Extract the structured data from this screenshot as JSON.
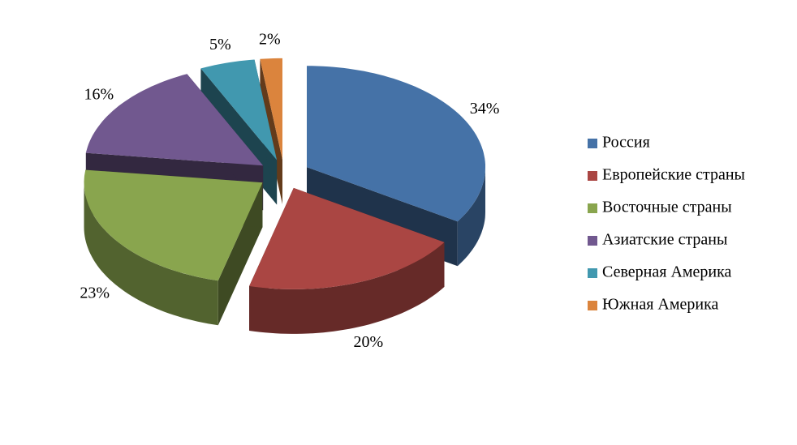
{
  "chart_data": {
    "type": "pie3d",
    "categories": [
      "Россия",
      "Европейские страны",
      "Восточные страны",
      "Азиатские страны",
      "Северная Америка",
      "Южная Америка"
    ],
    "values": [
      34,
      20,
      23,
      16,
      5,
      2
    ],
    "value_labels": [
      "34%",
      "20%",
      "23%",
      "16%",
      "5%",
      "2%"
    ],
    "colors": [
      "#4572a7",
      "#aa4643",
      "#89a54e",
      "#71588f",
      "#4198af",
      "#db843d"
    ],
    "legend": "right"
  }
}
